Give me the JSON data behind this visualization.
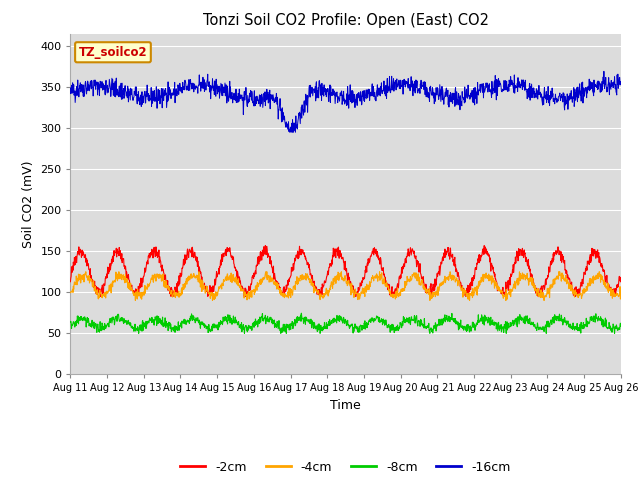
{
  "title": "Tonzi Soil CO2 Profile: Open (East) CO2",
  "xlabel": "Time",
  "ylabel": "Soil CO2 (mV)",
  "ylim": [
    0,
    415
  ],
  "yticks": [
    0,
    50,
    100,
    150,
    200,
    250,
    300,
    350,
    400
  ],
  "background_color": "#dcdcdc",
  "figure_bg": "#ffffff",
  "line_colors": {
    "-2cm": "#ff0000",
    "-4cm": "#ffa500",
    "-8cm": "#00cc00",
    "-16cm": "#0000cc"
  },
  "legend_labels": [
    "-2cm",
    "-4cm",
    "-8cm",
    "-16cm"
  ],
  "annotation_text": "TZ_soilco2",
  "annotation_bg": "#ffffcc",
  "annotation_border": "#cc8800",
  "n_points": 1500,
  "x_start": 11,
  "x_end": 26,
  "xtick_positions": [
    11,
    12,
    13,
    14,
    15,
    16,
    17,
    18,
    19,
    20,
    21,
    22,
    23,
    24,
    25,
    26
  ],
  "xtick_labels": [
    "Aug 11",
    "Aug 12",
    "Aug 13",
    "Aug 14",
    "Aug 15",
    "Aug 16",
    "Aug 17",
    "Aug 18",
    "Aug 19",
    "Aug 20",
    "Aug 21",
    "Aug 22",
    "Aug 23",
    "Aug 24",
    "Aug 25",
    "Aug 26"
  ]
}
